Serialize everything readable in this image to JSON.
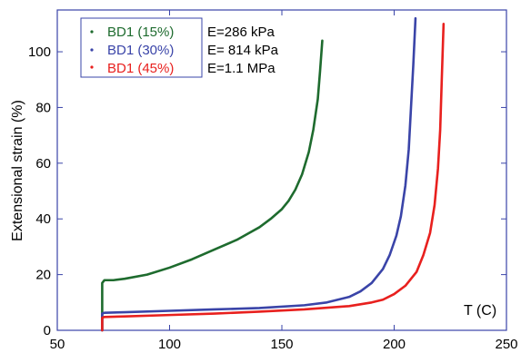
{
  "chart_data": {
    "type": "line",
    "xlabel": "T (C)",
    "ylabel": "Extensional strain (%)",
    "xlim": [
      50,
      250
    ],
    "ylim": [
      0,
      115
    ],
    "xticks": [
      50,
      100,
      150,
      200,
      250
    ],
    "yticks": [
      0,
      20,
      40,
      60,
      80,
      100
    ],
    "grid": false,
    "legend_position": "top-left",
    "series": [
      {
        "name": "BD1 (15%)",
        "color": "#1e6b2e",
        "modulus": "E=286 kPa",
        "x": [
          70,
          70,
          71,
          75,
          80,
          90,
          100,
          110,
          120,
          130,
          140,
          145,
          150,
          153,
          156,
          159,
          162,
          164,
          166,
          167,
          168
        ],
        "y": [
          0,
          17,
          18,
          18,
          18.5,
          20,
          22.5,
          25.5,
          29,
          32.5,
          37,
          40,
          43.5,
          46.5,
          50.5,
          56,
          64,
          72,
          83,
          93,
          104
        ]
      },
      {
        "name": "BD1 (30%)",
        "color": "#3a44a8",
        "modulus": "E= 814 kPa",
        "x": [
          70,
          70,
          71,
          80,
          100,
          120,
          140,
          160,
          170,
          180,
          185,
          190,
          195,
          198,
          201,
          203,
          205,
          206.5,
          207.5,
          208.5,
          209.5
        ],
        "y": [
          0,
          6,
          6.3,
          6.5,
          7,
          7.5,
          8,
          9,
          10,
          12,
          14,
          17,
          22,
          27,
          34,
          41,
          52,
          65,
          80,
          95,
          112
        ]
      },
      {
        "name": "BD1 (45%)",
        "color": "#e8201e",
        "modulus": "E=1.1 MPa",
        "x": [
          70,
          70,
          71,
          80,
          100,
          120,
          140,
          160,
          180,
          190,
          195,
          200,
          205,
          210,
          213,
          216,
          218,
          219.5,
          220.5,
          221.2,
          222
        ],
        "y": [
          0,
          4.5,
          4.8,
          5,
          5.5,
          6,
          6.7,
          7.5,
          8.7,
          10,
          11,
          13,
          16,
          21,
          27,
          35,
          45,
          58,
          72,
          90,
          110
        ]
      }
    ]
  }
}
